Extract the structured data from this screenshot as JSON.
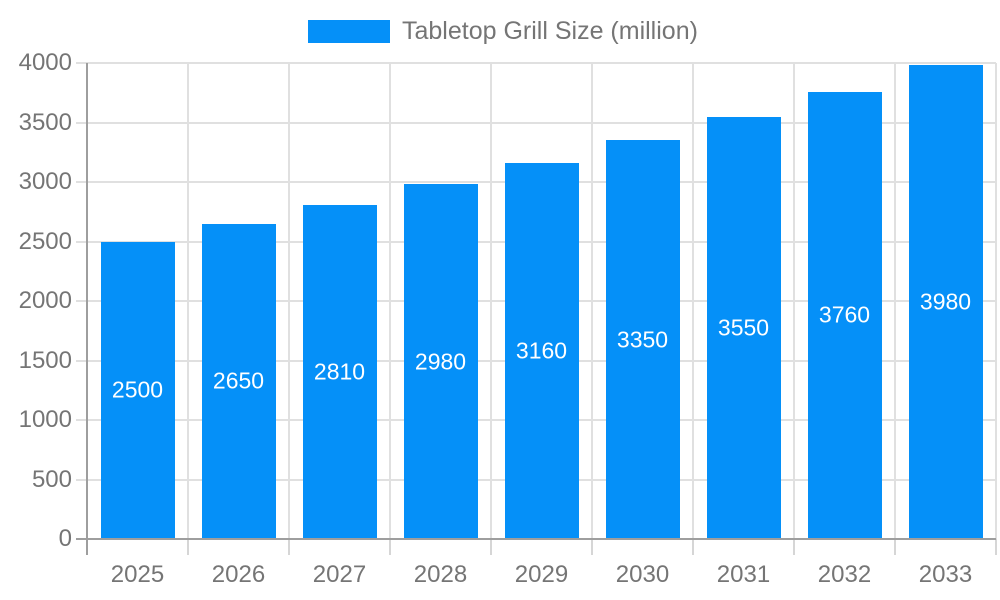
{
  "chart_data": {
    "type": "bar",
    "title": "Tabletop Grill Size (million)",
    "categories": [
      "2025",
      "2026",
      "2027",
      "2028",
      "2029",
      "2030",
      "2031",
      "2032",
      "2033"
    ],
    "values": [
      2500,
      2650,
      2810,
      2980,
      3160,
      3350,
      3550,
      3760,
      3980
    ],
    "series": [
      {
        "name": "Tabletop Grill Size (million)",
        "values": [
          2500,
          2650,
          2810,
          2980,
          3160,
          3350,
          3550,
          3760,
          3980
        ]
      }
    ],
    "xlabel": "",
    "ylabel": "",
    "ylim": [
      0,
      4000
    ],
    "yticks": [
      0,
      500,
      1000,
      1500,
      2000,
      2500,
      3000,
      3500,
      4000
    ],
    "grid": "horizontal and vertical light gray gridlines",
    "legend_position": "top-center",
    "bar_color": "#0590f8",
    "value_label_color": "#ffffff",
    "axis_text_color": "#757575",
    "gridline_color": "#e0e0e0",
    "axis_line_color": "#9e9e9e"
  }
}
